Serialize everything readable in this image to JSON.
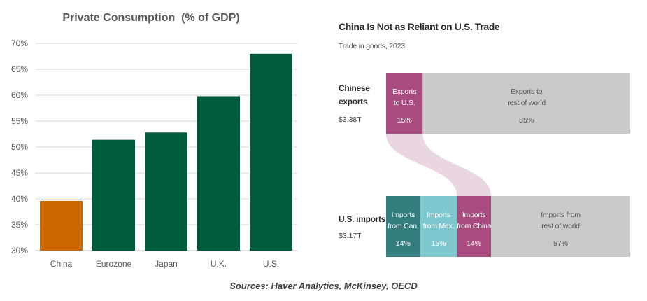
{
  "chart_data": [
    {
      "type": "bar",
      "title": "Private Consumption  (% of GDP)",
      "categories": [
        "China",
        "Eurozone",
        "Japan",
        "U.K.",
        "U.S."
      ],
      "values": [
        39.6,
        51.4,
        52.8,
        59.8,
        68.0
      ],
      "ylim": [
        30,
        70
      ],
      "yticks": [
        "30%",
        "35%",
        "40%",
        "45%",
        "50%",
        "55%",
        "60%",
        "65%",
        "70%"
      ],
      "grid": true,
      "colors": [
        "#CC6600",
        "#005A3E",
        "#005A3E",
        "#005A3E",
        "#005A3E"
      ]
    },
    {
      "type": "flow",
      "title": "China Is Not as Reliant on U.S. Trade",
      "subtitle": "Trade in goods, 2023",
      "rows": [
        {
          "label_line1": "Chinese",
          "label_line2": "exports",
          "total": "$3.38T",
          "segments": [
            {
              "name": "exports-to-us",
              "line1": "Exports",
              "line2": "to U.S.",
              "pct_label": "15%",
              "value": 15,
              "color": "#A84C80"
            },
            {
              "name": "exports-to-rest",
              "line1": "Exports to",
              "line2": "rest of world",
              "pct_label": "85%",
              "value": 85,
              "color": "#C9C9C9"
            }
          ]
        },
        {
          "label_line1": "U.S. imports",
          "label_line2": "",
          "total": "$3.17T",
          "segments": [
            {
              "name": "imports-from-canada",
              "line1": "Imports",
              "line2": "from Can.",
              "pct_label": "14%",
              "value": 14,
              "color": "#357E80"
            },
            {
              "name": "imports-from-mexico",
              "line1": "Imports",
              "line2": "from Mex.",
              "pct_label": "15%",
              "value": 15,
              "color": "#7FC7CE"
            },
            {
              "name": "imports-from-china",
              "line1": "Imports",
              "line2": "from China",
              "pct_label": "14%",
              "value": 14,
              "color": "#A84C80"
            },
            {
              "name": "imports-from-rest",
              "line1": "Imports from",
              "line2": "rest of world",
              "pct_label": "57%",
              "value": 57,
              "color": "#C9C9C9"
            }
          ]
        }
      ],
      "flow_color": "#EAD5E2"
    }
  ],
  "sources": "Sources: Haver Analytics, McKinsey, OECD"
}
